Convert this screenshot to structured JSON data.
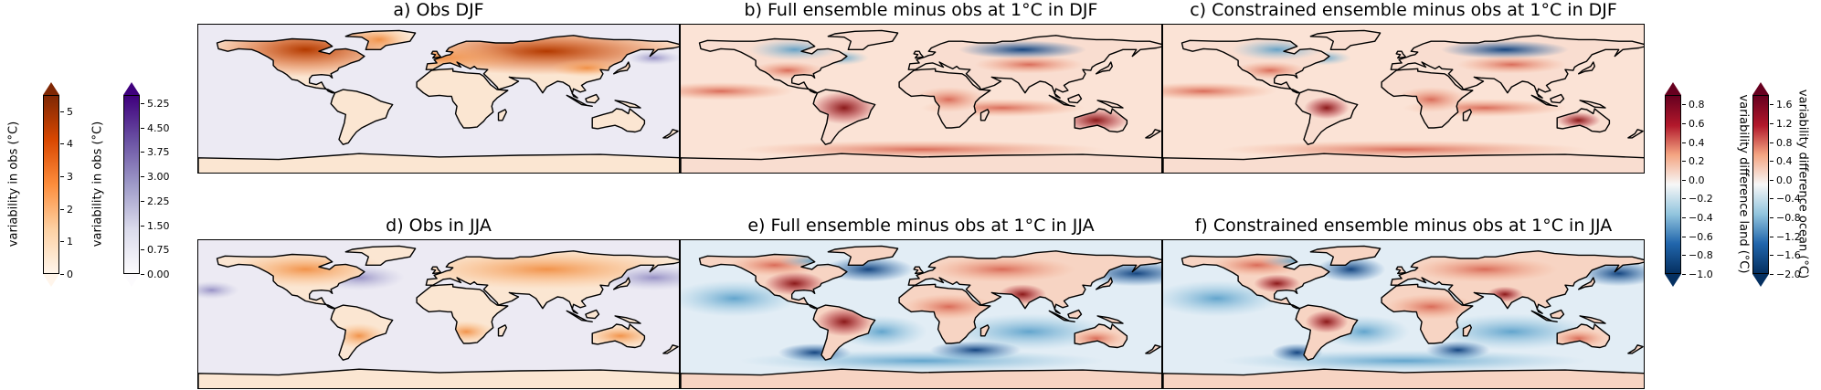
{
  "panels": [
    {
      "title": "a) Obs DJF",
      "kind": "obs",
      "season": "djf"
    },
    {
      "title": "b) Full ensemble minus obs at 1°C in DJF",
      "kind": "diff",
      "season": "djf",
      "strength": 1.0
    },
    {
      "title": "c) Constrained ensemble minus obs at 1°C in DJF",
      "kind": "diff",
      "season": "djf",
      "strength": 0.6
    },
    {
      "title": "d) Obs in JJA",
      "kind": "obs",
      "season": "jja"
    },
    {
      "title": "e) Full ensemble minus obs at 1°C in JJA",
      "kind": "diff",
      "season": "jja",
      "strength": 1.0
    },
    {
      "title": "f) Constrained ensemble minus obs at 1°C in JJA",
      "kind": "diff",
      "season": "jja",
      "strength": 0.7
    }
  ],
  "colorbars": {
    "land_obs": {
      "label": "variability  in obs (°C)",
      "ticks": [
        "0",
        "1",
        "2",
        "3",
        "4",
        "5"
      ],
      "range": [
        0,
        5.5
      ],
      "colors": [
        "#fff5eb",
        "#fdd0a2",
        "#fd8d3c",
        "#d94801",
        "#7f2704"
      ]
    },
    "ocean_obs": {
      "label": "variability in obs (°C)",
      "ticks": [
        "0.00",
        "0.75",
        "1.50",
        "2.25",
        "3.00",
        "3.75",
        "4.50",
        "5.25"
      ],
      "range": [
        0,
        5.5
      ],
      "colors": [
        "#fcfbfd",
        "#dadaeb",
        "#9e9ac8",
        "#6a51a3",
        "#3f007d"
      ]
    },
    "land_diff": {
      "label": "variability difference land (°C)",
      "ticks": [
        "−1.0",
        "−0.8",
        "−0.6",
        "−0.4",
        "−0.2",
        "0.0",
        "0.2",
        "0.4",
        "0.6",
        "0.8"
      ],
      "range": [
        -1.0,
        0.9
      ],
      "colors": [
        "#053061",
        "#2166ac",
        "#92c5de",
        "#f7f7f7",
        "#f4a582",
        "#b2182b",
        "#67001f"
      ]
    },
    "ocean_diff": {
      "label": "variability difference ocean (°C)",
      "ticks": [
        "−2.0",
        "−1.6",
        "−1.2",
        "−0.8",
        "−0.4",
        "0.0",
        "0.4",
        "0.8",
        "1.2",
        "1.6"
      ],
      "range": [
        -2.0,
        1.8
      ],
      "colors": [
        "#053061",
        "#2166ac",
        "#92c5de",
        "#f7f7f7",
        "#f4a582",
        "#b2182b",
        "#67001f"
      ]
    }
  }
}
